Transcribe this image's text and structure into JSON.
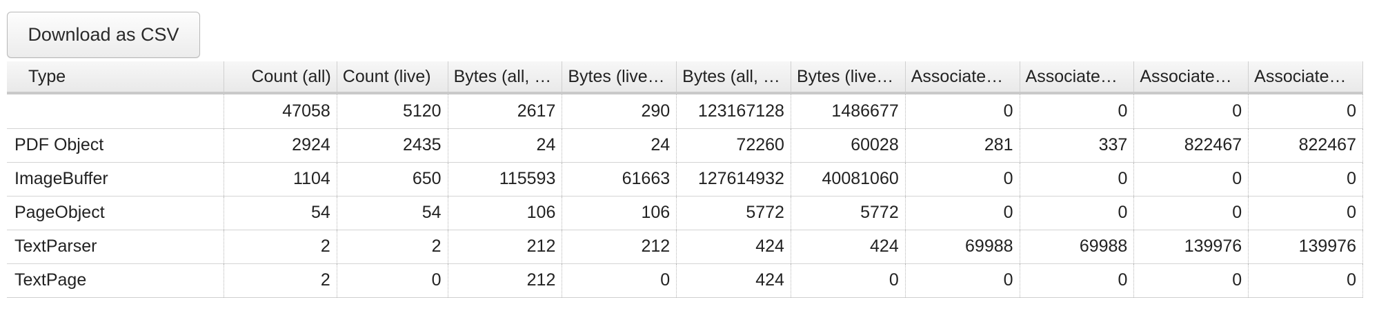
{
  "toolbar": {
    "download_label": "Download as CSV"
  },
  "table": {
    "columns": [
      "Type",
      "Count (all)",
      "Count (live)",
      "Bytes (all, …",
      "Bytes (live…",
      "Bytes (all, …",
      "Bytes (live…",
      "Associate…",
      "Associate…",
      "Associate…",
      "Associate…"
    ],
    "rows": [
      [
        "",
        "47058",
        "5120",
        "2617",
        "290",
        "123167128",
        "1486677",
        "0",
        "0",
        "0",
        "0"
      ],
      [
        "PDF Object",
        "2924",
        "2435",
        "24",
        "24",
        "72260",
        "60028",
        "281",
        "337",
        "822467",
        "822467"
      ],
      [
        "ImageBuffer",
        "1104",
        "650",
        "115593",
        "61663",
        "127614932",
        "40081060",
        "0",
        "0",
        "0",
        "0"
      ],
      [
        "PageObject",
        "54",
        "54",
        "106",
        "106",
        "5772",
        "5772",
        "0",
        "0",
        "0",
        "0"
      ],
      [
        "TextParser",
        "2",
        "2",
        "212",
        "212",
        "424",
        "424",
        "69988",
        "69988",
        "139976",
        "139976"
      ],
      [
        "TextPage",
        "2",
        "0",
        "212",
        "0",
        "424",
        "0",
        "0",
        "0",
        "0",
        "0"
      ]
    ]
  }
}
